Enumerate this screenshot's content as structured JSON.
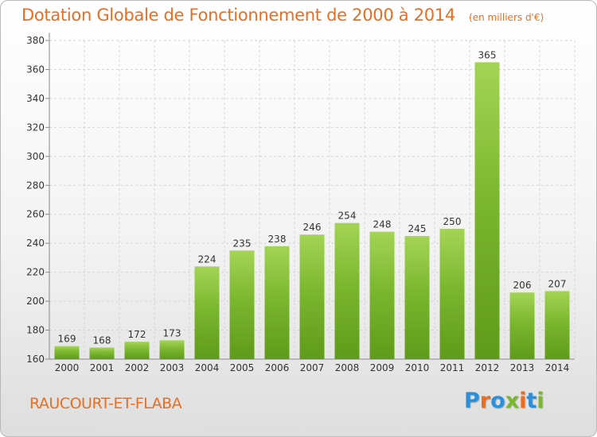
{
  "chart_data": {
    "type": "bar",
    "title": "Dotation Globale de Fonctionnement de 2000 à 2014",
    "subtitle": "(en milliers d'€)",
    "categories": [
      "2000",
      "2001",
      "2002",
      "2003",
      "2004",
      "2005",
      "2006",
      "2007",
      "2008",
      "2009",
      "2010",
      "2011",
      "2012",
      "2013",
      "2014"
    ],
    "values": [
      169,
      168,
      172,
      173,
      224,
      235,
      238,
      246,
      254,
      248,
      245,
      250,
      365,
      206,
      207
    ],
    "ylim": [
      160,
      380
    ],
    "yticks": [
      160,
      180,
      200,
      220,
      240,
      260,
      280,
      300,
      320,
      340,
      360,
      380
    ],
    "grid": true,
    "bar_color": "#7cb730",
    "bar_color_light": "#a4d455",
    "bar_color_dark": "#5f9a1a"
  },
  "footer": {
    "commune": "RAUCOURT-ET-FLABA",
    "brand": "Proxiti",
    "brand_colors": [
      "#2d8fd8",
      "#ec6d1e",
      "#2d8fd8",
      "#7cb730",
      "#ec6d1e",
      "#2d8fd8",
      "#7cb730"
    ]
  }
}
